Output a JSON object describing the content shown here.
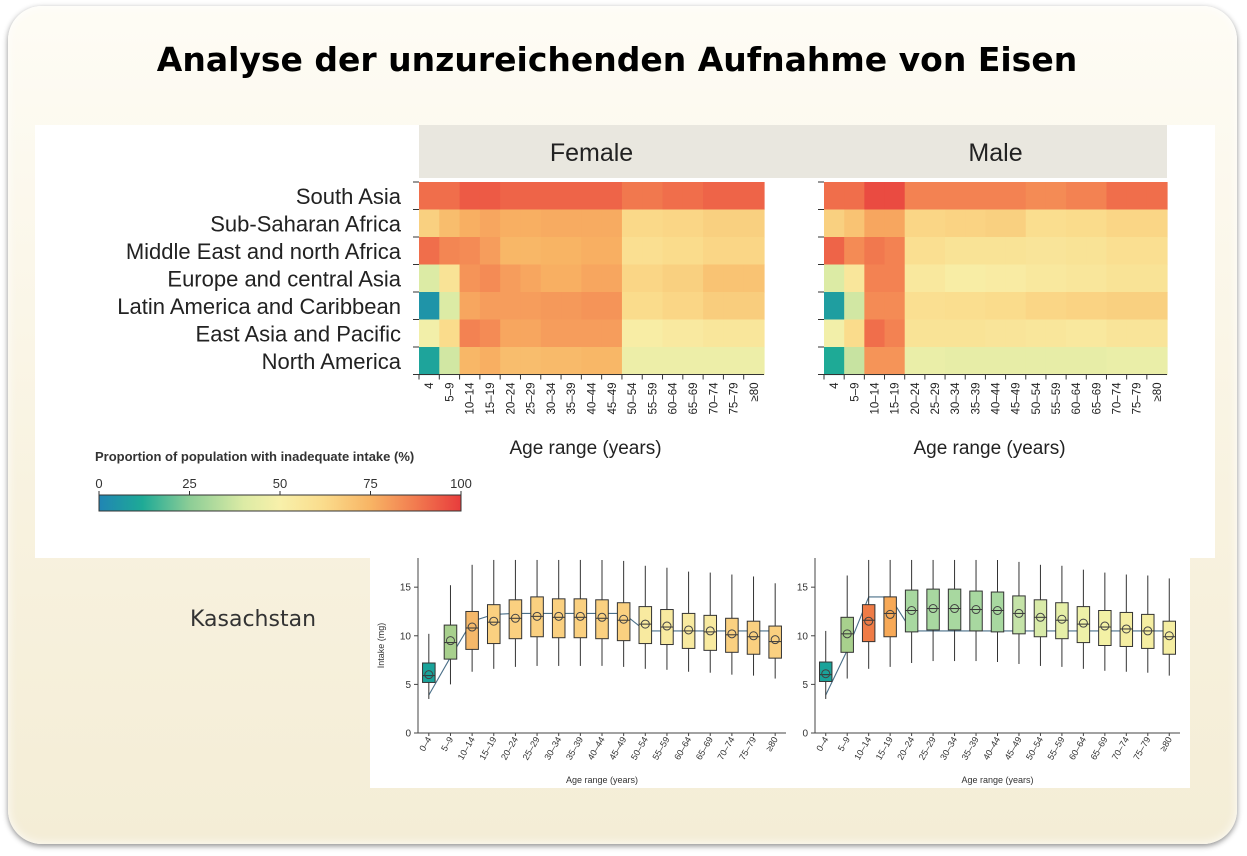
{
  "title": "Analyse der unzureichenden Aufnahme von Eisen",
  "country_label": "Kasachstan",
  "chart_data": [
    {
      "type": "heatmap",
      "facets": [
        "Female",
        "Male"
      ],
      "rows": [
        "South Asia",
        "Sub-Saharan Africa",
        "Middle East and north Africa",
        "Europe and central Asia",
        "Latin America and Caribbean",
        "East Asia and Pacific",
        "North America"
      ],
      "columns": [
        "4",
        "5–9",
        "10–14",
        "15–19",
        "20–24",
        "25–29",
        "30–34",
        "35–39",
        "40–44",
        "45–49",
        "50–54",
        "55–59",
        "60–64",
        "65–69",
        "70–74",
        "75–79",
        "≥80"
      ],
      "xlabel": "Age range (years)",
      "colorbar": {
        "label": "Proportion of population with inadequate intake (%)",
        "ticks": [
          "0",
          "25",
          "50",
          "75",
          "100"
        ],
        "range": [
          0,
          100
        ]
      },
      "values": {
        "Female": [
          [
            90,
            90,
            94,
            94,
            92,
            92,
            92,
            92,
            92,
            92,
            88,
            88,
            90,
            90,
            92,
            92,
            92
          ],
          [
            66,
            72,
            76,
            78,
            76,
            76,
            77,
            77,
            77,
            77,
            63,
            63,
            64,
            64,
            66,
            66,
            66
          ],
          [
            90,
            85,
            84,
            80,
            74,
            74,
            75,
            75,
            76,
            76,
            60,
            60,
            62,
            62,
            64,
            64,
            64
          ],
          [
            40,
            58,
            82,
            84,
            80,
            78,
            76,
            76,
            78,
            78,
            64,
            64,
            66,
            66,
            70,
            70,
            70
          ],
          [
            5,
            40,
            78,
            80,
            80,
            80,
            81,
            81,
            82,
            82,
            62,
            62,
            64,
            64,
            67,
            67,
            67
          ],
          [
            48,
            62,
            86,
            84,
            78,
            78,
            80,
            80,
            80,
            80,
            52,
            52,
            54,
            54,
            56,
            56,
            56
          ],
          [
            10,
            38,
            74,
            76,
            72,
            72,
            73,
            73,
            74,
            74,
            46,
            46,
            46,
            46,
            46,
            46,
            46
          ]
        ],
        "Male": [
          [
            90,
            90,
            97,
            97,
            86,
            86,
            86,
            86,
            86,
            86,
            84,
            84,
            86,
            86,
            90,
            90,
            90
          ],
          [
            66,
            70,
            78,
            78,
            64,
            64,
            65,
            65,
            66,
            66,
            61,
            61,
            62,
            62,
            64,
            64,
            64
          ],
          [
            92,
            84,
            88,
            86,
            60,
            60,
            58,
            58,
            58,
            58,
            57,
            57,
            58,
            58,
            60,
            60,
            60
          ],
          [
            40,
            56,
            86,
            86,
            55,
            55,
            52,
            52,
            53,
            53,
            55,
            55,
            56,
            56,
            58,
            58,
            58
          ],
          [
            8,
            38,
            84,
            84,
            60,
            60,
            61,
            61,
            62,
            62,
            64,
            64,
            65,
            65,
            66,
            66,
            66
          ],
          [
            48,
            62,
            90,
            86,
            58,
            58,
            58,
            58,
            57,
            57,
            56,
            56,
            55,
            55,
            57,
            57,
            57
          ],
          [
            12,
            36,
            82,
            82,
            45,
            45,
            44,
            44,
            44,
            44,
            44,
            44,
            44,
            44,
            45,
            45,
            45
          ]
        ]
      }
    },
    {
      "type": "box",
      "categories": [
        "0–4",
        "5–9",
        "10–14",
        "15–19",
        "20–24",
        "25–29",
        "30–34",
        "35–39",
        "40–44",
        "45–49",
        "50–54",
        "55–59",
        "60–64",
        "65–69",
        "70–74",
        "75–79",
        "≥80"
      ],
      "xlabel": "Age range (years)",
      "ylabel": "Intake (mg)",
      "ylim": [
        0,
        18
      ],
      "yticks": [
        0,
        5,
        10,
        15
      ],
      "requirement_line": {
        "female": [
          3.9,
          7.8,
          11.5,
          12.2,
          12.3,
          12.3,
          12.3,
          12.3,
          12.3,
          12.3,
          10.5,
          10.5,
          10.5,
          10.5,
          10.5,
          10.5,
          10.5
        ],
        "male": [
          3.9,
          8.5,
          14.0,
          14.0,
          10.5,
          10.5,
          10.5,
          10.5,
          10.5,
          10.5,
          10.5,
          10.5,
          10.5,
          10.5,
          10.5,
          10.5,
          10.5
        ]
      },
      "series": [
        {
          "name": "Female",
          "boxes": [
            {
              "whisker_low": 3.5,
              "q1": 5.2,
              "median": 5.9,
              "q3": 7.2,
              "whisker_high": 10.2,
              "mean": 6.0,
              "color": "#1aa39a"
            },
            {
              "whisker_low": 5.0,
              "q1": 7.6,
              "median": 9.3,
              "q3": 11.1,
              "whisker_high": 15.2,
              "mean": 9.5,
              "color": "#a8d08d"
            },
            {
              "whisker_low": 6.3,
              "q1": 8.6,
              "median": 10.8,
              "q3": 12.5,
              "whisker_high": 17.3,
              "mean": 10.9,
              "color": "#f5b86a"
            },
            {
              "whisker_low": 6.6,
              "q1": 9.2,
              "median": 11.4,
              "q3": 13.2,
              "whisker_high": 17.8,
              "mean": 11.5,
              "color": "#fad080"
            },
            {
              "whisker_low": 6.8,
              "q1": 9.7,
              "median": 11.8,
              "q3": 13.7,
              "whisker_high": 17.8,
              "mean": 11.8,
              "color": "#fad080"
            },
            {
              "whisker_low": 6.9,
              "q1": 9.9,
              "median": 12.0,
              "q3": 14.0,
              "whisker_high": 17.8,
              "mean": 12.0,
              "color": "#fad080"
            },
            {
              "whisker_low": 6.9,
              "q1": 9.8,
              "median": 11.9,
              "q3": 13.8,
              "whisker_high": 17.8,
              "mean": 12.0,
              "color": "#fad080"
            },
            {
              "whisker_low": 6.9,
              "q1": 9.8,
              "median": 11.9,
              "q3": 13.8,
              "whisker_high": 17.8,
              "mean": 12.0,
              "color": "#fad080"
            },
            {
              "whisker_low": 6.9,
              "q1": 9.7,
              "median": 11.8,
              "q3": 13.7,
              "whisker_high": 17.8,
              "mean": 11.9,
              "color": "#fad080"
            },
            {
              "whisker_low": 6.8,
              "q1": 9.5,
              "median": 11.6,
              "q3": 13.4,
              "whisker_high": 17.7,
              "mean": 11.7,
              "color": "#fad080"
            },
            {
              "whisker_low": 6.6,
              "q1": 9.2,
              "median": 11.2,
              "q3": 13.0,
              "whisker_high": 17.2,
              "mean": 11.2,
              "color": "#f8eaa0"
            },
            {
              "whisker_low": 6.5,
              "q1": 9.1,
              "median": 10.9,
              "q3": 12.7,
              "whisker_high": 17.0,
              "mean": 11.0,
              "color": "#f8eaa0"
            },
            {
              "whisker_low": 6.3,
              "q1": 8.7,
              "median": 10.5,
              "q3": 12.3,
              "whisker_high": 16.6,
              "mean": 10.6,
              "color": "#f8eaa0"
            },
            {
              "whisker_low": 6.2,
              "q1": 8.5,
              "median": 10.4,
              "q3": 12.1,
              "whisker_high": 16.5,
              "mean": 10.5,
              "color": "#f8eaa0"
            },
            {
              "whisker_low": 6.0,
              "q1": 8.3,
              "median": 10.1,
              "q3": 11.8,
              "whisker_high": 16.3,
              "mean": 10.2,
              "color": "#fad080"
            },
            {
              "whisker_low": 5.9,
              "q1": 8.1,
              "median": 9.9,
              "q3": 11.5,
              "whisker_high": 16.1,
              "mean": 10.0,
              "color": "#fad080"
            },
            {
              "whisker_low": 5.6,
              "q1": 7.7,
              "median": 9.4,
              "q3": 11.0,
              "whisker_high": 15.4,
              "mean": 9.6,
              "color": "#fad080"
            }
          ]
        },
        {
          "name": "Male",
          "boxes": [
            {
              "whisker_low": 3.5,
              "q1": 5.3,
              "median": 6.0,
              "q3": 7.3,
              "whisker_high": 10.5,
              "mean": 6.1,
              "color": "#1aa39a"
            },
            {
              "whisker_low": 5.6,
              "q1": 8.3,
              "median": 10.2,
              "q3": 11.9,
              "whisker_high": 16.2,
              "mean": 10.2,
              "color": "#a8d08d"
            },
            {
              "whisker_low": 6.6,
              "q1": 9.4,
              "median": 11.6,
              "q3": 13.2,
              "whisker_high": 17.8,
              "mean": 11.5,
              "color": "#ef7b46"
            },
            {
              "whisker_low": 6.8,
              "q1": 9.9,
              "median": 12.3,
              "q3": 14.0,
              "whisker_high": 17.8,
              "mean": 12.2,
              "color": "#f7a957"
            },
            {
              "whisker_low": 7.2,
              "q1": 10.4,
              "median": 12.6,
              "q3": 14.7,
              "whisker_high": 17.8,
              "mean": 12.6,
              "color": "#a8d8a0"
            },
            {
              "whisker_low": 7.4,
              "q1": 10.6,
              "median": 12.8,
              "q3": 14.8,
              "whisker_high": 17.8,
              "mean": 12.8,
              "color": "#a8d8a0"
            },
            {
              "whisker_low": 7.4,
              "q1": 10.6,
              "median": 12.8,
              "q3": 14.8,
              "whisker_high": 17.8,
              "mean": 12.8,
              "color": "#a8d8a0"
            },
            {
              "whisker_low": 7.4,
              "q1": 10.5,
              "median": 12.7,
              "q3": 14.6,
              "whisker_high": 17.8,
              "mean": 12.7,
              "color": "#a8d8a0"
            },
            {
              "whisker_low": 7.3,
              "q1": 10.4,
              "median": 12.6,
              "q3": 14.5,
              "whisker_high": 17.8,
              "mean": 12.6,
              "color": "#a8d8a0"
            },
            {
              "whisker_low": 7.1,
              "q1": 10.2,
              "median": 12.3,
              "q3": 14.1,
              "whisker_high": 17.6,
              "mean": 12.3,
              "color": "#c5e3a8"
            },
            {
              "whisker_low": 6.9,
              "q1": 9.9,
              "median": 11.9,
              "q3": 13.7,
              "whisker_high": 17.3,
              "mean": 11.9,
              "color": "#d8eaa8"
            },
            {
              "whisker_low": 6.8,
              "q1": 9.7,
              "median": 11.6,
              "q3": 13.4,
              "whisker_high": 17.2,
              "mean": 11.7,
              "color": "#e6efa8"
            },
            {
              "whisker_low": 6.6,
              "q1": 9.3,
              "median": 11.2,
              "q3": 13.0,
              "whisker_high": 16.8,
              "mean": 11.3,
              "color": "#eef1a8"
            },
            {
              "whisker_low": 6.4,
              "q1": 9.0,
              "median": 10.9,
              "q3": 12.6,
              "whisker_high": 16.5,
              "mean": 11.0,
              "color": "#f3f1a5"
            },
            {
              "whisker_low": 6.3,
              "q1": 8.9,
              "median": 10.7,
              "q3": 12.4,
              "whisker_high": 16.3,
              "mean": 10.7,
              "color": "#f5eea2"
            },
            {
              "whisker_low": 6.2,
              "q1": 8.7,
              "median": 10.5,
              "q3": 12.2,
              "whisker_high": 16.2,
              "mean": 10.5,
              "color": "#f5eea2"
            },
            {
              "whisker_low": 5.9,
              "q1": 8.1,
              "median": 9.9,
              "q3": 11.5,
              "whisker_high": 15.9,
              "mean": 10.0,
              "color": "#f5eea2"
            }
          ]
        }
      ]
    }
  ]
}
